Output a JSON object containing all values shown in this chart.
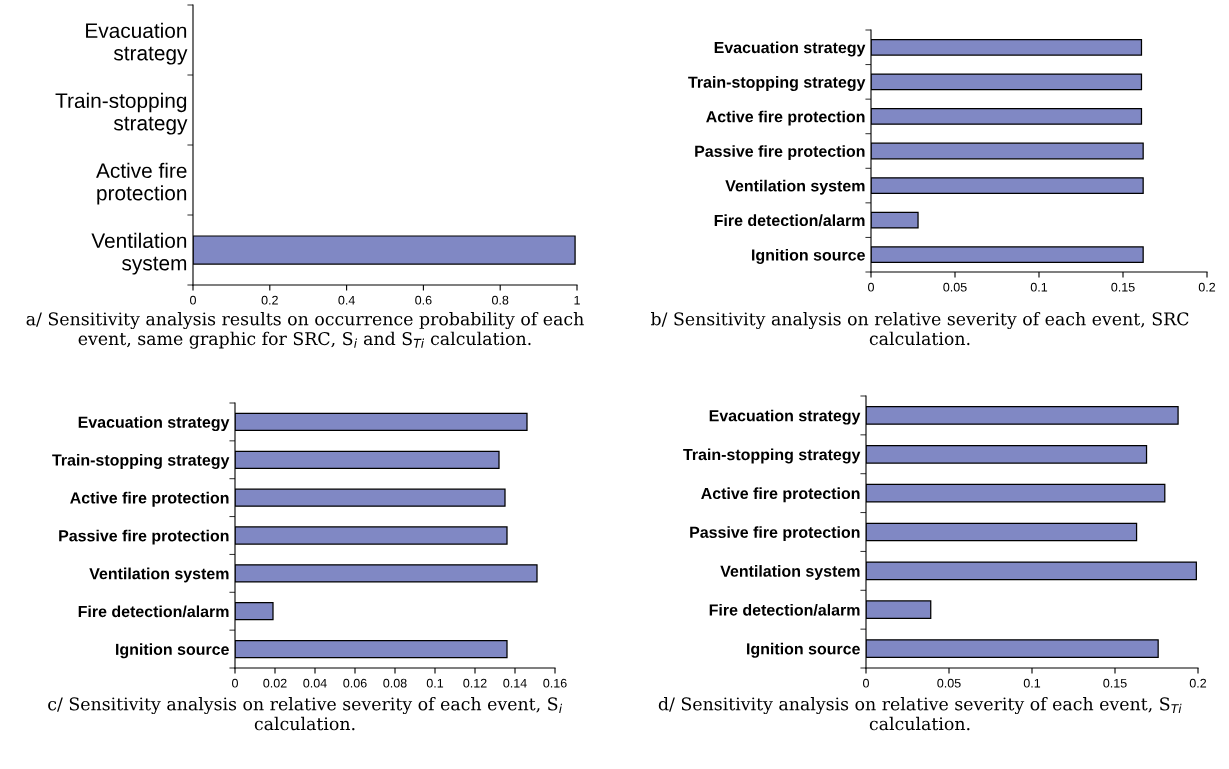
{
  "chart_data": [
    {
      "type": "bar",
      "orientation": "horizontal",
      "categories": [
        "Evacuation\nstrategy",
        "Train-stopping\nstrategy",
        "Active fire\nprotection",
        "Ventilation\nsystem"
      ],
      "values": [
        null,
        null,
        null,
        0.995
      ],
      "color": "#8088c4",
      "xlim": [
        0,
        1
      ],
      "xticks": [
        0,
        0.2,
        0.4,
        0.6,
        0.8,
        1
      ],
      "grid": false,
      "annotations": [
        "a/ Sensitivity analysis results on occurrence probability of each event, same graphic for SRC, S$_{i}$ and S$_{Ti}$ calculation."
      ]
    },
    {
      "type": "bar",
      "orientation": "horizontal",
      "categories": [
        "Evacuation strategy",
        "Train-stopping strategy",
        "Active fire protection",
        "Passive fire protection",
        "Ventilation system",
        "Fire detection/alarm",
        "Ignition source"
      ],
      "values": [
        0.161,
        0.161,
        0.161,
        0.162,
        0.162,
        0.028,
        0.162
      ],
      "color": "#8088c4",
      "xlim": [
        0,
        0.2
      ],
      "xticks": [
        0,
        0.05,
        0.1,
        0.15,
        0.2
      ],
      "grid": false,
      "annotations": [
        "b/ Sensitivity analysis on relative severity of each event, SRC calculation."
      ]
    },
    {
      "type": "bar",
      "orientation": "horizontal",
      "categories": [
        "Evacuation strategy",
        "Train-stopping strategy",
        "Active fire protection",
        "Passive fire protection",
        "Ventilation system",
        "Fire detection/alarm",
        "Ignition source"
      ],
      "values": [
        0.146,
        0.132,
        0.135,
        0.136,
        0.151,
        0.019,
        0.136
      ],
      "color": "#8088c4",
      "xlim": [
        0,
        0.16
      ],
      "xticks": [
        0,
        0.02,
        0.04,
        0.06,
        0.08,
        0.1,
        0.12,
        0.14,
        0.16
      ],
      "grid": false,
      "annotations": [
        "c/ Sensitivity analysis on relative severity of each event, S$_{i}$ calculation."
      ]
    },
    {
      "type": "bar",
      "orientation": "horizontal",
      "categories": [
        "Evacuation strategy",
        "Train-stopping strategy",
        "Active fire protection",
        "Passive fire protection",
        "Ventilation system",
        "Fire detection/alarm",
        "Ignition source"
      ],
      "values": [
        0.188,
        0.169,
        0.18,
        0.163,
        0.199,
        0.039,
        0.176
      ],
      "color": "#8088c4",
      "xlim": [
        0,
        0.2
      ],
      "xticks": [
        0,
        0.05,
        0.1,
        0.15,
        0.2
      ],
      "grid": false,
      "annotations": [
        "d/ Sensitivity analysis on relative severity of each event, S$_{Ti}$ calculation."
      ]
    }
  ]
}
